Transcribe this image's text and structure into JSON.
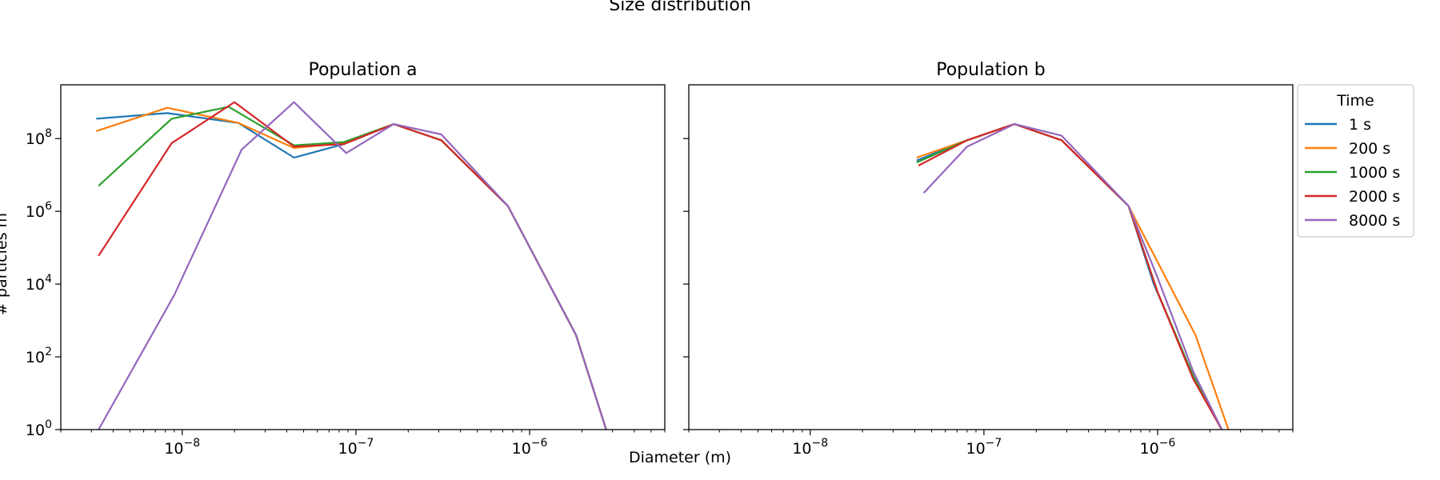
{
  "figure": {
    "suptitle": "Size distribution",
    "xlabel": "Diameter (m)",
    "ylabel": "# particles m"
  },
  "chart_data": [
    {
      "type": "line",
      "title": "Population a",
      "xlabel": "Diameter (m)",
      "ylabel": "# particles m",
      "xscale": "log",
      "yscale": "log",
      "xlim": [
        2e-09,
        6e-06
      ],
      "ylim": [
        1,
        3000000000.0
      ],
      "x_ticks": [
        1e-08,
        1e-07,
        1e-06
      ],
      "x_tick_labels": [
        {
          "base": "10",
          "exp": "−8"
        },
        {
          "base": "10",
          "exp": "−7"
        },
        {
          "base": "10",
          "exp": "−6"
        }
      ],
      "y_ticks": [
        1,
        100,
        10000,
        1000000,
        100000000
      ],
      "y_tick_labels": [
        {
          "base": "10",
          "exp": "0"
        },
        {
          "base": "10",
          "exp": "2"
        },
        {
          "base": "10",
          "exp": "4"
        },
        {
          "base": "10",
          "exp": "6"
        },
        {
          "base": "10",
          "exp": "8"
        }
      ],
      "grid": false,
      "series": [
        {
          "name": "1 s",
          "color": "#1f77b4",
          "points": [
            [
              3.2e-09,
              350000000.0
            ],
            [
              8.2e-09,
              500000000.0
            ],
            [
              2.1e-08,
              270000000.0
            ],
            [
              4.4e-08,
              30000000.0
            ],
            [
              8.5e-08,
              70000000.0
            ],
            [
              1.65e-07,
              250000000.0
            ],
            [
              3.1e-07,
              90000000.0
            ],
            [
              7.5e-07,
              1400000.0
            ],
            [
              1.85e-06,
              400
            ],
            [
              2.8e-06,
              0.8
            ]
          ]
        },
        {
          "name": "200 s",
          "color": "#ff7f0e",
          "points": [
            [
              3.2e-09,
              160000000.0
            ],
            [
              8.2e-09,
              700000000.0
            ],
            [
              2.1e-08,
              270000000.0
            ],
            [
              4.4e-08,
              55000000.0
            ],
            [
              8.5e-08,
              75000000.0
            ],
            [
              1.65e-07,
              250000000.0
            ],
            [
              3.1e-07,
              90000000.0
            ],
            [
              7.5e-07,
              1400000.0
            ],
            [
              1.85e-06,
              400
            ],
            [
              2.8e-06,
              0.8
            ]
          ]
        },
        {
          "name": "1000 s",
          "color": "#2ca02c",
          "points": [
            [
              3.3e-09,
              5000000.0
            ],
            [
              8.7e-09,
              350000000.0
            ],
            [
              1.85e-08,
              750000000.0
            ],
            [
              4.4e-08,
              65000000.0
            ],
            [
              8.5e-08,
              80000000.0
            ],
            [
              1.65e-07,
              250000000.0
            ],
            [
              3.1e-07,
              90000000.0
            ],
            [
              7.5e-07,
              1400000.0
            ],
            [
              1.85e-06,
              400
            ],
            [
              2.8e-06,
              0.8
            ]
          ]
        },
        {
          "name": "2000 s",
          "color": "#d62728",
          "points": [
            [
              3.3e-09,
              60000.0
            ],
            [
              8.7e-09,
              75000000.0
            ],
            [
              2e-08,
              1000000000.0
            ],
            [
              4.4e-08,
              60000000.0
            ],
            [
              8.5e-08,
              70000000.0
            ],
            [
              1.65e-07,
              250000000.0
            ],
            [
              3.1e-07,
              90000000.0
            ],
            [
              7.5e-07,
              1400000.0
            ],
            [
              1.85e-06,
              400
            ],
            [
              2.8e-06,
              0.8
            ]
          ]
        },
        {
          "name": "8000 s",
          "color": "#9467bd",
          "points": [
            [
              3.3e-09,
              1.0
            ],
            [
              9e-09,
              5000.0
            ],
            [
              2.2e-08,
              50000000.0
            ],
            [
              4.4e-08,
              1000000000.0
            ],
            [
              8.8e-08,
              40000000.0
            ],
            [
              1.65e-07,
              250000000.0
            ],
            [
              3.1e-07,
              130000000.0
            ],
            [
              7.5e-07,
              1400000.0
            ],
            [
              1.85e-06,
              400
            ],
            [
              2.8e-06,
              0.8
            ]
          ]
        }
      ]
    },
    {
      "type": "line",
      "title": "Population b",
      "xlabel": "Diameter (m)",
      "xscale": "log",
      "yscale": "log",
      "xlim": [
        2e-09,
        6e-06
      ],
      "ylim": [
        1,
        3000000000.0
      ],
      "x_ticks": [
        1e-08,
        1e-07,
        1e-06
      ],
      "x_tick_labels": [
        {
          "base": "10",
          "exp": "−8"
        },
        {
          "base": "10",
          "exp": "−7"
        },
        {
          "base": "10",
          "exp": "−6"
        }
      ],
      "y_ticks": [
        1,
        100,
        10000,
        1000000,
        100000000
      ],
      "grid": false,
      "series": [
        {
          "name": "1 s",
          "color": "#1f77b4",
          "points": [
            [
              4.1e-08,
              25000000.0
            ],
            [
              8e-08,
              90000000.0
            ],
            [
              1.5e-07,
              250000000.0
            ],
            [
              2.8e-07,
              90000000.0
            ],
            [
              6.8e-07,
              1400000.0
            ],
            [
              9.5e-07,
              10000.0
            ],
            [
              1.6e-06,
              30
            ],
            [
              2.4e-06,
              0.8
            ]
          ]
        },
        {
          "name": "200 s",
          "color": "#ff7f0e",
          "points": [
            [
              4.1e-08,
              30000000.0
            ],
            [
              8e-08,
              90000000.0
            ],
            [
              1.5e-07,
              250000000.0
            ],
            [
              2.8e-07,
              90000000.0
            ],
            [
              6.8e-07,
              1400000.0
            ],
            [
              1.65e-06,
              400
            ],
            [
              2.6e-06,
              0.8
            ]
          ]
        },
        {
          "name": "1000 s",
          "color": "#2ca02c",
          "points": [
            [
              4.1e-08,
              22000000.0
            ],
            [
              8e-08,
              90000000.0
            ],
            [
              1.5e-07,
              250000000.0
            ],
            [
              2.8e-07,
              90000000.0
            ],
            [
              6.8e-07,
              1400000.0
            ],
            [
              1e-06,
              6000.0
            ],
            [
              1.6e-06,
              30
            ],
            [
              2.4e-06,
              0.8
            ]
          ]
        },
        {
          "name": "2000 s",
          "color": "#d62728",
          "points": [
            [
              4.2e-08,
              18000000.0
            ],
            [
              8e-08,
              90000000.0
            ],
            [
              1.5e-07,
              250000000.0
            ],
            [
              2.8e-07,
              90000000.0
            ],
            [
              6.8e-07,
              1400000.0
            ],
            [
              1e-06,
              6000.0
            ],
            [
              1.6e-06,
              25
            ],
            [
              2.4e-06,
              0.8
            ]
          ]
        },
        {
          "name": "8000 s",
          "color": "#9467bd",
          "points": [
            [
              4.5e-08,
              3200000.0
            ],
            [
              8e-08,
              60000000.0
            ],
            [
              1.5e-07,
              250000000.0
            ],
            [
              2.8e-07,
              120000000.0
            ],
            [
              6.8e-07,
              1400000.0
            ],
            [
              1e-06,
              15000.0
            ],
            [
              1.6e-06,
              40
            ],
            [
              2.4e-06,
              0.8
            ]
          ]
        }
      ]
    }
  ],
  "legend": {
    "title": "Time",
    "placement": "right of Population b",
    "entries": [
      {
        "label": "1 s",
        "color": "#1f77b4"
      },
      {
        "label": "200 s",
        "color": "#ff7f0e"
      },
      {
        "label": "1000 s",
        "color": "#2ca02c"
      },
      {
        "label": "2000 s",
        "color": "#d62728"
      },
      {
        "label": "8000 s",
        "color": "#9467bd"
      }
    ]
  }
}
